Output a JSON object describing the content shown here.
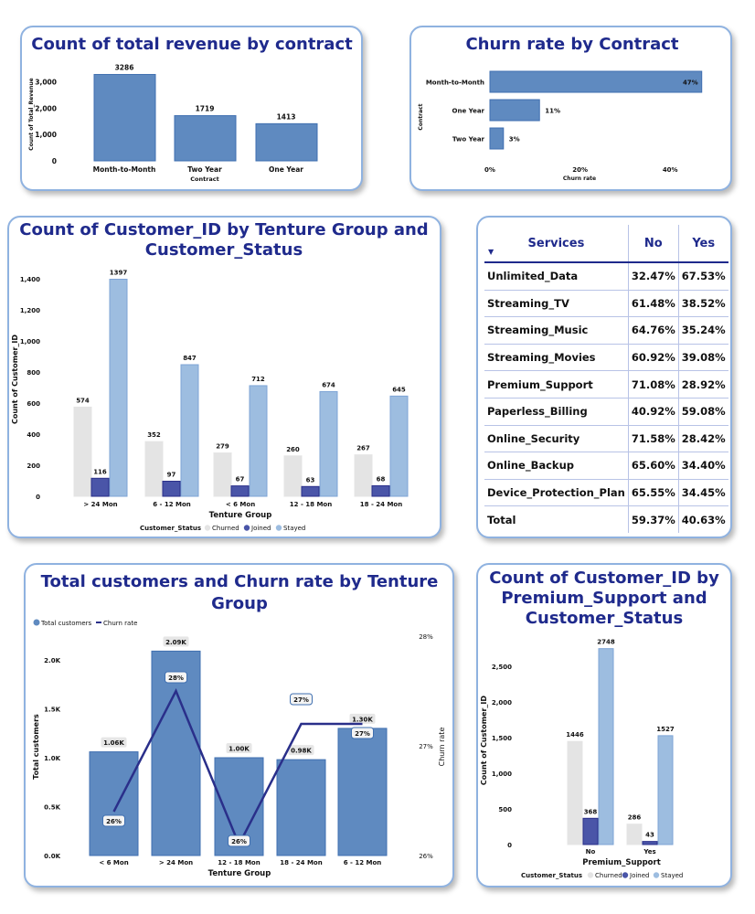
{
  "colors": {
    "bar": "#5f8ac0",
    "bar_border": "#3f6fb0",
    "churned": "#e4e4e4",
    "joined": "#4a55a8",
    "stayed": "#9dbde0",
    "line": "#2a2f8a",
    "title": "#1f2a8c"
  },
  "chart_data": [
    {
      "id": "revenue",
      "type": "bar",
      "title": "Count of total revenue by contract",
      "xlabel": "Contract",
      "ylabel": "Count of Total_Revenue",
      "categories": [
        "Month-to-Month",
        "Two Year",
        "One Year"
      ],
      "values": [
        3286,
        1719,
        1413
      ],
      "value_labels": [
        "3286",
        "1719",
        "1413"
      ],
      "yticks": [
        "0",
        "1,000",
        "2,000",
        "3,000"
      ],
      "ytick_values": [
        0,
        1000,
        2000,
        3000
      ],
      "ylim": [
        0,
        3300
      ],
      "grid": false
    },
    {
      "id": "churn_contract",
      "type": "bar",
      "orientation": "horizontal",
      "title": "Churn rate by Contract",
      "xlabel": "Churn rate",
      "ylabel": "Contract",
      "categories": [
        "Month-to-Month",
        "One Year",
        "Two Year"
      ],
      "values": [
        47,
        11,
        3
      ],
      "value_labels": [
        "47%",
        "11%",
        "3%"
      ],
      "xticks": [
        "0%",
        "20%",
        "40%"
      ],
      "xtick_values": [
        0,
        20,
        40
      ],
      "xlim": [
        0,
        48
      ],
      "grid": false
    },
    {
      "id": "tenure_status",
      "type": "bar",
      "title_lines": [
        "Count of Customer_ID by Tenture Group and",
        "Customer_Status"
      ],
      "xlabel": "Tenture Group",
      "ylabel": "Count of Customer_ID",
      "categories": [
        "> 24 Mon",
        "6 - 12 Mon",
        "< 6 Mon",
        "12 - 18 Mon",
        "18 - 24 Mon"
      ],
      "series": [
        {
          "name": "Churned",
          "values": [
            574,
            352,
            279,
            260,
            267
          ]
        },
        {
          "name": "Joined",
          "values": [
            116,
            97,
            67,
            63,
            68
          ]
        },
        {
          "name": "Stayed",
          "values": [
            1397,
            847,
            712,
            674,
            645
          ]
        }
      ],
      "legend_title": "Customer_Status",
      "legend": "bottom",
      "yticks": [
        "0",
        "200",
        "400",
        "600",
        "800",
        "1,000",
        "1,200",
        "1,400"
      ],
      "ytick_values": [
        0,
        200,
        400,
        600,
        800,
        1000,
        1200,
        1400
      ],
      "ylim": [
        0,
        1400
      ],
      "grid": false
    },
    {
      "id": "tenure_churn",
      "type": "bar+line",
      "title_lines": [
        "Total customers and Churn rate by Tenture",
        "Group"
      ],
      "xlabel": "Tenture Group",
      "ylabel": "Total customers",
      "y2label": "Churn rate",
      "categories": [
        "< 6 Mon",
        "> 24 Mon",
        "12 - 18 Mon",
        "18 - 24 Mon",
        "6 - 12 Mon"
      ],
      "series": [
        {
          "name": "Total customers",
          "values": [
            1060,
            2090,
            1000,
            980,
            1300
          ],
          "labels": [
            "1.06K",
            "2.09K",
            "1.00K",
            "0.98K",
            "1.30K"
          ]
        },
        {
          "name": "Churn rate",
          "values": [
            26.4,
            27.5,
            26.1,
            27.2,
            27.2
          ],
          "labels": [
            "26%",
            "28%",
            "26%",
            "27%",
            "27%"
          ]
        }
      ],
      "legend": "top-left",
      "yticks": [
        "0.0K",
        "0.5K",
        "1.0K",
        "1.5K",
        "2.0K"
      ],
      "ytick_values": [
        0,
        500,
        1000,
        1500,
        2000
      ],
      "ylim": [
        0,
        2000
      ],
      "y2ticks": [
        "26%",
        "27%",
        "28%"
      ],
      "y2tick_values": [
        26,
        27,
        28
      ],
      "y2lim": [
        26,
        28
      ],
      "grid": false
    },
    {
      "id": "premium_status",
      "type": "bar",
      "title_lines": [
        "Count of Customer_ID by",
        "Premium_Support and",
        "Customer_Status"
      ],
      "xlabel": "Premium_Support",
      "ylabel": "Count of Customer_ID",
      "categories": [
        "No",
        "Yes"
      ],
      "series": [
        {
          "name": "Churned",
          "values": [
            1446,
            286
          ]
        },
        {
          "name": "Joined",
          "values": [
            368,
            43
          ]
        },
        {
          "name": "Stayed",
          "values": [
            2748,
            1527
          ]
        }
      ],
      "legend_title": "Customer_Status",
      "legend": "bottom",
      "yticks": [
        "0",
        "500",
        "1,000",
        "1,500",
        "2,000",
        "2,500"
      ],
      "ytick_values": [
        0,
        500,
        1000,
        1500,
        2000,
        2500
      ],
      "ylim": [
        0,
        2500
      ],
      "grid": false
    }
  ],
  "services_table": {
    "headers": [
      "Services",
      "No",
      "Yes"
    ],
    "sort_icon": "caret-down-icon",
    "rows": [
      [
        "Unlimited_Data",
        "32.47%",
        "67.53%"
      ],
      [
        "Streaming_TV",
        "61.48%",
        "38.52%"
      ],
      [
        "Streaming_Music",
        "64.76%",
        "35.24%"
      ],
      [
        "Streaming_Movies",
        "60.92%",
        "39.08%"
      ],
      [
        "Premium_Support",
        "71.08%",
        "28.92%"
      ],
      [
        "Paperless_Billing",
        "40.92%",
        "59.08%"
      ],
      [
        "Online_Security",
        "71.58%",
        "28.42%"
      ],
      [
        "Online_Backup",
        "65.60%",
        "34.40%"
      ],
      [
        "Device_Protection_Plan",
        "65.55%",
        "34.45%"
      ]
    ],
    "total": [
      "Total",
      "59.37%",
      "40.63%"
    ]
  }
}
